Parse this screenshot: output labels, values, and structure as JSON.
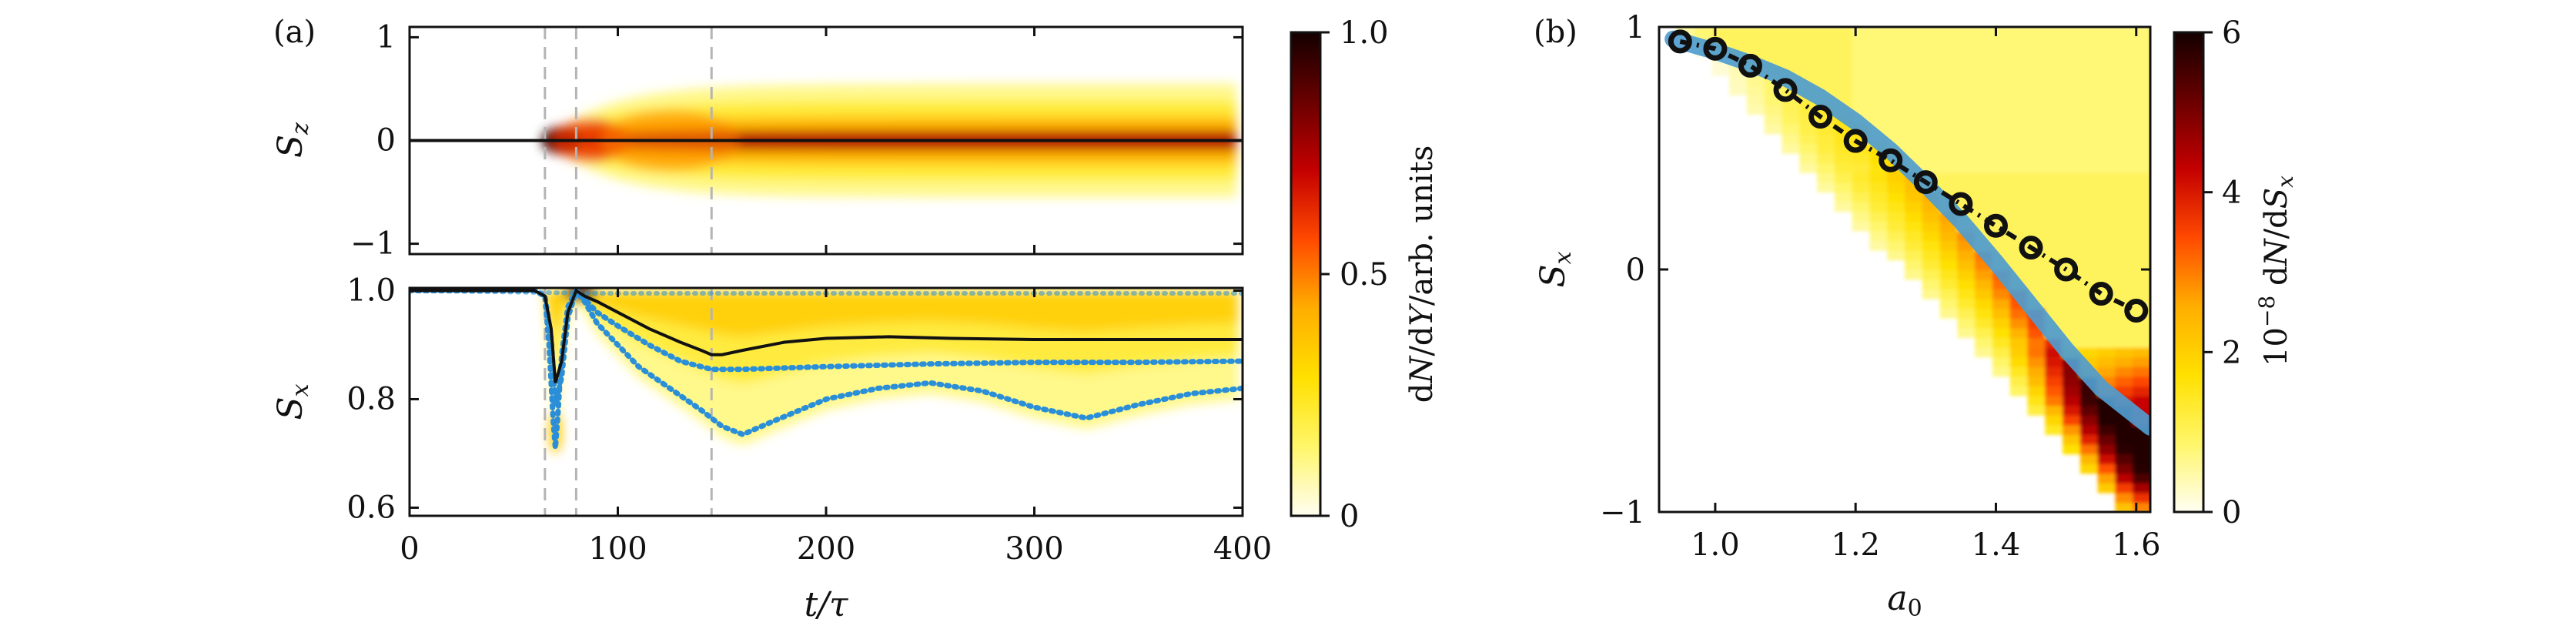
{
  "colors": {
    "colormap": [
      "#fffef2",
      "#fff66a",
      "#ffe000",
      "#ffae00",
      "#ff4a00",
      "#c40000",
      "#6a0000",
      "#140000"
    ],
    "mean_line": "#111111",
    "dotted_line": "#2a8fd8",
    "thick_line": "#4f9ccf",
    "dashed_marker": "#b4b4b4"
  },
  "chart_data": [
    {
      "id": "a",
      "panel_label": "(a)",
      "type": "heatmap",
      "xlabel": "t/τ",
      "xlim": [
        0,
        400
      ],
      "xticks": [
        0,
        100,
        200,
        300,
        400
      ],
      "dashed_markers_t": [
        65,
        80,
        145
      ],
      "top": {
        "ylabel": "Sz",
        "ylim": [
          -1.1,
          1.1
        ],
        "yticks": [
          -1,
          0,
          1
        ],
        "yticklabels": [
          "−1",
          "0",
          "1"
        ],
        "mean_line": {
          "t": [
            0,
            400
          ],
          "sz": [
            0,
            0
          ]
        }
      },
      "bottom": {
        "ylabel": "Sx",
        "ylim": [
          0.585,
          1.005
        ],
        "yticks": [
          0.6,
          0.8,
          1.0
        ],
        "yticklabels": [
          "0.6",
          "0.8",
          "1.0"
        ],
        "series": [
          {
            "style": "solid-black",
            "t": [
              0,
              60,
              65,
              68,
              70,
              73,
              76,
              80,
              84,
              90,
              100,
              115,
              130,
              140,
              145,
              150,
              160,
              180,
              200,
              230,
              260,
              300,
              350,
              400
            ],
            "values": [
              1.0,
              1.0,
              0.99,
              0.93,
              0.83,
              0.87,
              0.96,
              1.0,
              0.99,
              0.98,
              0.96,
              0.93,
              0.905,
              0.89,
              0.882,
              0.882,
              0.89,
              0.905,
              0.912,
              0.915,
              0.912,
              0.91,
              0.91,
              0.91
            ]
          },
          {
            "style": "dotted-upper",
            "t": [
              0,
              60,
              65,
              68,
              70,
              73,
              76,
              80,
              84,
              90,
              100,
              115,
              130,
              145,
              160,
              200,
              250,
              300,
              350,
              400
            ],
            "values": [
              1.0,
              1.0,
              0.99,
              0.91,
              0.79,
              0.84,
              0.95,
              1.0,
              0.985,
              0.96,
              0.935,
              0.9,
              0.87,
              0.855,
              0.855,
              0.86,
              0.865,
              0.868,
              0.868,
              0.87
            ]
          },
          {
            "style": "dotted-lower",
            "t": [
              0,
              60,
              65,
              67,
              69,
              70,
              71,
              73,
              76,
              80,
              84,
              90,
              100,
              110,
              125,
              140,
              150,
              160,
              175,
              200,
              225,
              250,
              275,
              300,
              325,
              350,
              375,
              400
            ],
            "values": [
              1.0,
              1.0,
              0.99,
              0.9,
              0.76,
              0.71,
              0.76,
              0.88,
              0.97,
              1.0,
              0.98,
              0.94,
              0.9,
              0.86,
              0.82,
              0.78,
              0.75,
              0.735,
              0.76,
              0.8,
              0.82,
              0.83,
              0.815,
              0.785,
              0.765,
              0.79,
              0.81,
              0.82
            ]
          },
          {
            "style": "dotted-top",
            "t": [
              0,
              90,
              400
            ],
            "values": [
              1.0,
              0.995,
              0.995
            ]
          }
        ]
      },
      "colorbar": {
        "label": "dN/dY/arb. units",
        "ticks": [
          0,
          0.5,
          1.0
        ],
        "ticklabels": [
          "0",
          "0.5",
          "1.0"
        ],
        "range": [
          0,
          1
        ]
      }
    },
    {
      "id": "b",
      "panel_label": "(b)",
      "type": "heatmap",
      "xlabel": "a0",
      "ylabel": "Sx",
      "xlim": [
        0.92,
        1.62
      ],
      "ylim": [
        -1,
        1
      ],
      "xticks": [
        1.0,
        1.2,
        1.4,
        1.6
      ],
      "xticklabels": [
        "1.0",
        "1.2",
        "1.4",
        "1.6"
      ],
      "yticks": [
        -1,
        0,
        1
      ],
      "yticklabels": [
        "−1",
        "0",
        "1"
      ],
      "series": [
        {
          "style": "circles-dashdot",
          "x": [
            0.95,
            1.0,
            1.05,
            1.1,
            1.15,
            1.2,
            1.25,
            1.3,
            1.35,
            1.4,
            1.45,
            1.5,
            1.55,
            1.6
          ],
          "values": [
            0.94,
            0.91,
            0.84,
            0.74,
            0.63,
            0.53,
            0.45,
            0.36,
            0.27,
            0.18,
            0.09,
            0.0,
            -0.1,
            -0.17
          ]
        },
        {
          "style": "thick-blue",
          "x": [
            0.94,
            1.0,
            1.05,
            1.1,
            1.15,
            1.2,
            1.25,
            1.3,
            1.35,
            1.4,
            1.45,
            1.5,
            1.55,
            1.62
          ],
          "values": [
            0.95,
            0.9,
            0.85,
            0.79,
            0.71,
            0.61,
            0.49,
            0.35,
            0.2,
            0.03,
            -0.15,
            -0.33,
            -0.49,
            -0.65
          ]
        }
      ],
      "colorbar": {
        "label": "10−8 dN/dSx",
        "ticks": [
          0,
          2,
          4,
          6
        ],
        "ticklabels": [
          "0",
          "2",
          "4",
          "6"
        ],
        "range": [
          0,
          6
        ]
      }
    }
  ]
}
